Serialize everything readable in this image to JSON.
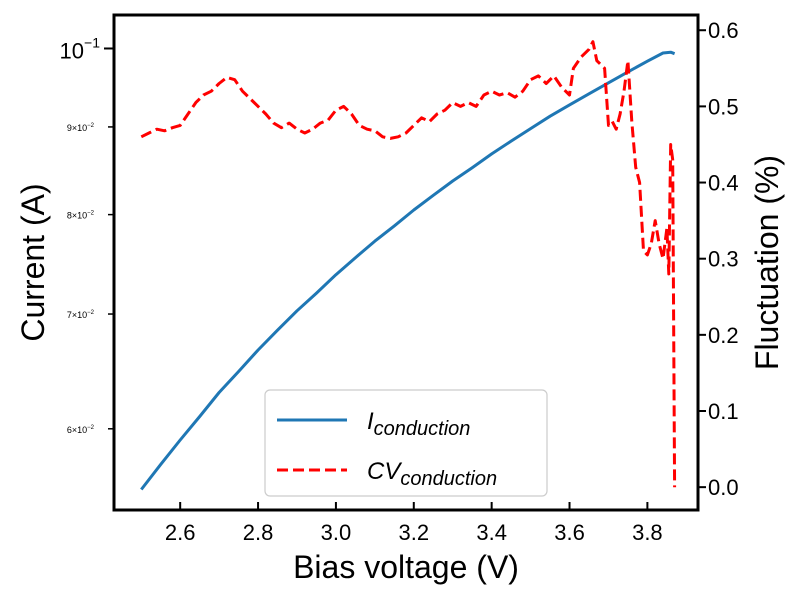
{
  "chart_data": {
    "type": "line",
    "xlabel": "Bias voltage (V)",
    "ylabel_left": "Current (A)",
    "ylabel_right": "Fluctuation (%)",
    "y_left_scale": "log",
    "xlim": [
      2.43,
      3.93
    ],
    "ylim_left": [
      0.0538,
      0.1046
    ],
    "ylim_right": [
      -0.03,
      0.62
    ],
    "x_ticks": [
      {
        "value": 2.6,
        "label": "2.6"
      },
      {
        "value": 2.8,
        "label": "2.8"
      },
      {
        "value": 3.0,
        "label": "3.0"
      },
      {
        "value": 3.2,
        "label": "3.2"
      },
      {
        "value": 3.4,
        "label": "3.4"
      },
      {
        "value": 3.6,
        "label": "3.6"
      },
      {
        "value": 3.8,
        "label": "3.8"
      }
    ],
    "y_left_major_ticks": [
      {
        "value": 0.1,
        "base": "10",
        "exp": "−1"
      }
    ],
    "y_left_minor_ticks": [
      {
        "value": 0.09,
        "mant": "9×10",
        "exp": "−2"
      },
      {
        "value": 0.08,
        "mant": "8×10",
        "exp": "−2"
      },
      {
        "value": 0.07,
        "mant": "7×10",
        "exp": "−2"
      },
      {
        "value": 0.06,
        "mant": "6×10",
        "exp": "−2"
      }
    ],
    "y_right_ticks": [
      {
        "value": 0.0,
        "label": "0.0"
      },
      {
        "value": 0.1,
        "label": "0.1"
      },
      {
        "value": 0.2,
        "label": "0.2"
      },
      {
        "value": 0.3,
        "label": "0.3"
      },
      {
        "value": 0.4,
        "label": "0.4"
      },
      {
        "value": 0.5,
        "label": "0.5"
      },
      {
        "value": 0.6,
        "label": "0.6"
      }
    ],
    "legend_position": "bottom-center",
    "series": [
      {
        "name": "I",
        "name_sub": "conduction",
        "axis": "left",
        "color": "#1f77b4",
        "style": "solid",
        "points": [
          [
            2.5,
            0.0553
          ],
          [
            2.55,
            0.0572
          ],
          [
            2.6,
            0.0591
          ],
          [
            2.65,
            0.061
          ],
          [
            2.7,
            0.063
          ],
          [
            2.75,
            0.0648
          ],
          [
            2.8,
            0.0667
          ],
          [
            2.85,
            0.0685
          ],
          [
            2.9,
            0.0703
          ],
          [
            2.95,
            0.072
          ],
          [
            3.0,
            0.0738
          ],
          [
            3.05,
            0.0755
          ],
          [
            3.1,
            0.0772
          ],
          [
            3.15,
            0.0788
          ],
          [
            3.2,
            0.0805
          ],
          [
            3.25,
            0.0821
          ],
          [
            3.3,
            0.0837
          ],
          [
            3.35,
            0.0852
          ],
          [
            3.4,
            0.0868
          ],
          [
            3.45,
            0.0883
          ],
          [
            3.5,
            0.0898
          ],
          [
            3.55,
            0.0913
          ],
          [
            3.6,
            0.0927
          ],
          [
            3.65,
            0.0941
          ],
          [
            3.7,
            0.0955
          ],
          [
            3.75,
            0.0969
          ],
          [
            3.8,
            0.0983
          ],
          [
            3.84,
            0.0994
          ],
          [
            3.86,
            0.0995
          ],
          [
            3.87,
            0.0993
          ]
        ]
      },
      {
        "name": "CV",
        "name_sub": "conduction",
        "axis": "right",
        "color": "#ff0000",
        "style": "dashed",
        "points": [
          [
            2.5,
            0.46
          ],
          [
            2.52,
            0.465
          ],
          [
            2.54,
            0.47
          ],
          [
            2.56,
            0.468
          ],
          [
            2.58,
            0.472
          ],
          [
            2.6,
            0.475
          ],
          [
            2.62,
            0.49
          ],
          [
            2.64,
            0.505
          ],
          [
            2.66,
            0.515
          ],
          [
            2.68,
            0.52
          ],
          [
            2.7,
            0.53
          ],
          [
            2.72,
            0.538
          ],
          [
            2.74,
            0.535
          ],
          [
            2.76,
            0.52
          ],
          [
            2.78,
            0.51
          ],
          [
            2.8,
            0.5
          ],
          [
            2.82,
            0.49
          ],
          [
            2.84,
            0.478
          ],
          [
            2.86,
            0.472
          ],
          [
            2.88,
            0.478
          ],
          [
            2.9,
            0.47
          ],
          [
            2.92,
            0.465
          ],
          [
            2.94,
            0.47
          ],
          [
            2.96,
            0.478
          ],
          [
            2.98,
            0.482
          ],
          [
            3.0,
            0.495
          ],
          [
            3.02,
            0.5
          ],
          [
            3.04,
            0.49
          ],
          [
            3.06,
            0.475
          ],
          [
            3.08,
            0.47
          ],
          [
            3.1,
            0.468
          ],
          [
            3.12,
            0.46
          ],
          [
            3.14,
            0.458
          ],
          [
            3.16,
            0.46
          ],
          [
            3.18,
            0.465
          ],
          [
            3.2,
            0.475
          ],
          [
            3.22,
            0.485
          ],
          [
            3.24,
            0.48
          ],
          [
            3.26,
            0.49
          ],
          [
            3.28,
            0.495
          ],
          [
            3.3,
            0.505
          ],
          [
            3.32,
            0.5
          ],
          [
            3.34,
            0.505
          ],
          [
            3.36,
            0.5
          ],
          [
            3.38,
            0.515
          ],
          [
            3.4,
            0.52
          ],
          [
            3.42,
            0.515
          ],
          [
            3.44,
            0.518
          ],
          [
            3.46,
            0.512
          ],
          [
            3.48,
            0.52
          ],
          [
            3.5,
            0.535
          ],
          [
            3.52,
            0.54
          ],
          [
            3.54,
            0.53
          ],
          [
            3.56,
            0.54
          ],
          [
            3.58,
            0.525
          ],
          [
            3.6,
            0.515
          ],
          [
            3.61,
            0.55
          ],
          [
            3.63,
            0.565
          ],
          [
            3.65,
            0.575
          ],
          [
            3.66,
            0.585
          ],
          [
            3.67,
            0.56
          ],
          [
            3.69,
            0.55
          ],
          [
            3.7,
            0.475
          ],
          [
            3.71,
            0.48
          ],
          [
            3.72,
            0.47
          ],
          [
            3.73,
            0.49
          ],
          [
            3.74,
            0.52
          ],
          [
            3.75,
            0.56
          ],
          [
            3.76,
            0.48
          ],
          [
            3.77,
            0.42
          ],
          [
            3.78,
            0.4
          ],
          [
            3.79,
            0.31
          ],
          [
            3.8,
            0.305
          ],
          [
            3.81,
            0.32
          ],
          [
            3.82,
            0.35
          ],
          [
            3.83,
            0.32
          ],
          [
            3.84,
            0.3
          ],
          [
            3.85,
            0.34
          ],
          [
            3.855,
            0.28
          ],
          [
            3.86,
            0.45
          ],
          [
            3.865,
            0.43
          ],
          [
            3.87,
            0.0
          ]
        ]
      }
    ]
  }
}
